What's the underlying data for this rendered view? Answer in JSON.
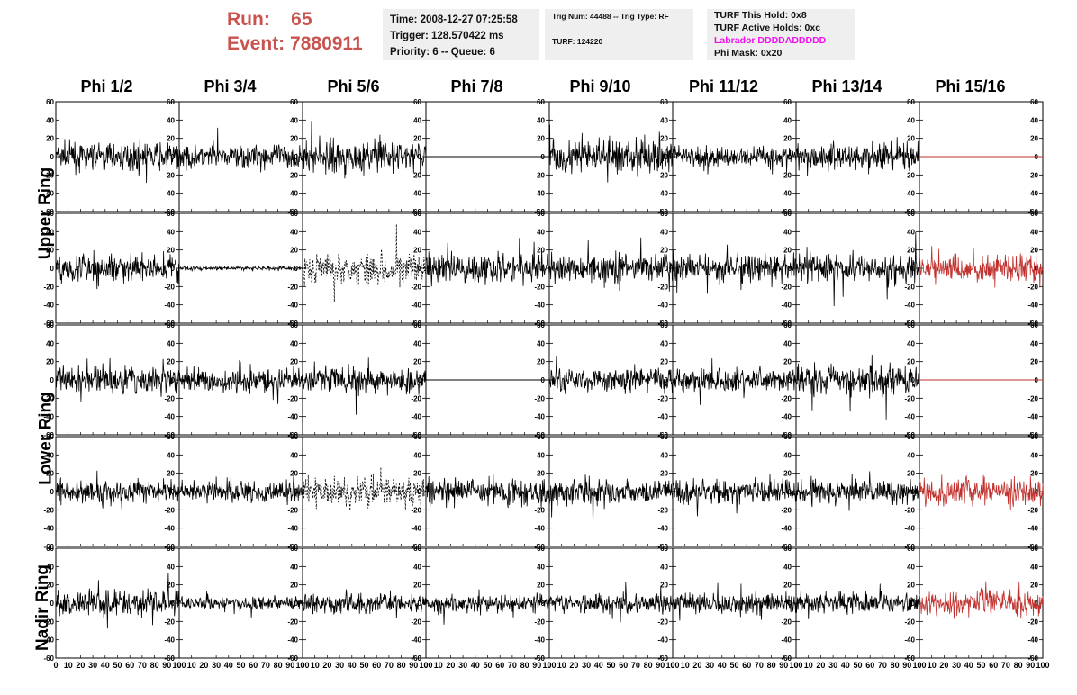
{
  "header": {
    "run_label": "Run:",
    "run_value": "65",
    "event_label": "Event:",
    "event_value": "7880911",
    "time": "Time: 2008-12-27 07:25:58",
    "trigger": "Trigger: 128.570422 ms",
    "priority": "Priority: 6 -- Queue: 6",
    "trig_num": "Trig Num: 44488 -- Trig Type: RF",
    "turf": "TURF: 124220",
    "turf_this_hold": "TURF This Hold: 0x8",
    "turf_active_holds": "TURF Active Holds: 0xc",
    "labrador": "Labrador DDDDADDDDD",
    "phi_mask": "Phi Mask: 0x20"
  },
  "colors": {
    "title": "#c9534f",
    "masked_trace": "#c0302c",
    "labrador": "#ee11ee",
    "panel_bg": "#efefef"
  },
  "chart_data": {
    "type": "line",
    "columns": [
      "Phi 1/2",
      "Phi 3/4",
      "Phi 5/6",
      "Phi 7/8",
      "Phi 9/10",
      "Phi 11/12",
      "Phi 13/14",
      "Phi 15/16"
    ],
    "ring_labels": [
      "Upper Ring",
      "Lower Ring",
      "Nadir Ring"
    ],
    "rows": 5,
    "xlim": [
      0,
      100
    ],
    "ylim": [
      -60,
      60
    ],
    "x_ticks": [
      0,
      10,
      20,
      30,
      40,
      50,
      60,
      70,
      80,
      90,
      100
    ],
    "y_ticks": [
      -60,
      -40,
      -20,
      0,
      20,
      40,
      60
    ],
    "traces": [
      [
        {
          "s": "noise",
          "a": 13
        },
        {
          "s": "noise",
          "a": 12
        },
        {
          "s": "noise",
          "a": 15
        },
        {
          "s": "flat"
        },
        {
          "s": "noise",
          "a": 17
        },
        {
          "s": "noise",
          "a": 10
        },
        {
          "s": "noise",
          "a": 14
        },
        {
          "s": "flat",
          "red": true
        }
      ],
      [
        {
          "s": "noise",
          "a": 13
        },
        {
          "s": "small",
          "a": 2
        },
        {
          "s": "dashed",
          "a": 15
        },
        {
          "s": "noise",
          "a": 15
        },
        {
          "s": "noise",
          "a": 14
        },
        {
          "s": "noise",
          "a": 13
        },
        {
          "s": "noise",
          "a": 14
        },
        {
          "s": "noise",
          "a": 14,
          "red": true
        }
      ],
      [
        {
          "s": "noise",
          "a": 13
        },
        {
          "s": "noise",
          "a": 11
        },
        {
          "s": "noise",
          "a": 13
        },
        {
          "s": "flat"
        },
        {
          "s": "noise",
          "a": 12
        },
        {
          "s": "noise",
          "a": 12
        },
        {
          "s": "noise",
          "a": 15
        },
        {
          "s": "flat",
          "red": true
        }
      ],
      [
        {
          "s": "noise",
          "a": 11
        },
        {
          "s": "noise",
          "a": 11
        },
        {
          "s": "dashed",
          "a": 14
        },
        {
          "s": "noise",
          "a": 12
        },
        {
          "s": "noise",
          "a": 12
        },
        {
          "s": "noise",
          "a": 12
        },
        {
          "s": "noise",
          "a": 12
        },
        {
          "s": "noise",
          "a": 14,
          "red": true
        }
      ],
      [
        {
          "s": "noise",
          "a": 13
        },
        {
          "s": "noise",
          "a": 6
        },
        {
          "s": "noise",
          "a": 10
        },
        {
          "s": "noise",
          "a": 9
        },
        {
          "s": "noise",
          "a": 9
        },
        {
          "s": "noise",
          "a": 10
        },
        {
          "s": "noise",
          "a": 10
        },
        {
          "s": "noise",
          "a": 12,
          "red": true
        }
      ]
    ]
  }
}
